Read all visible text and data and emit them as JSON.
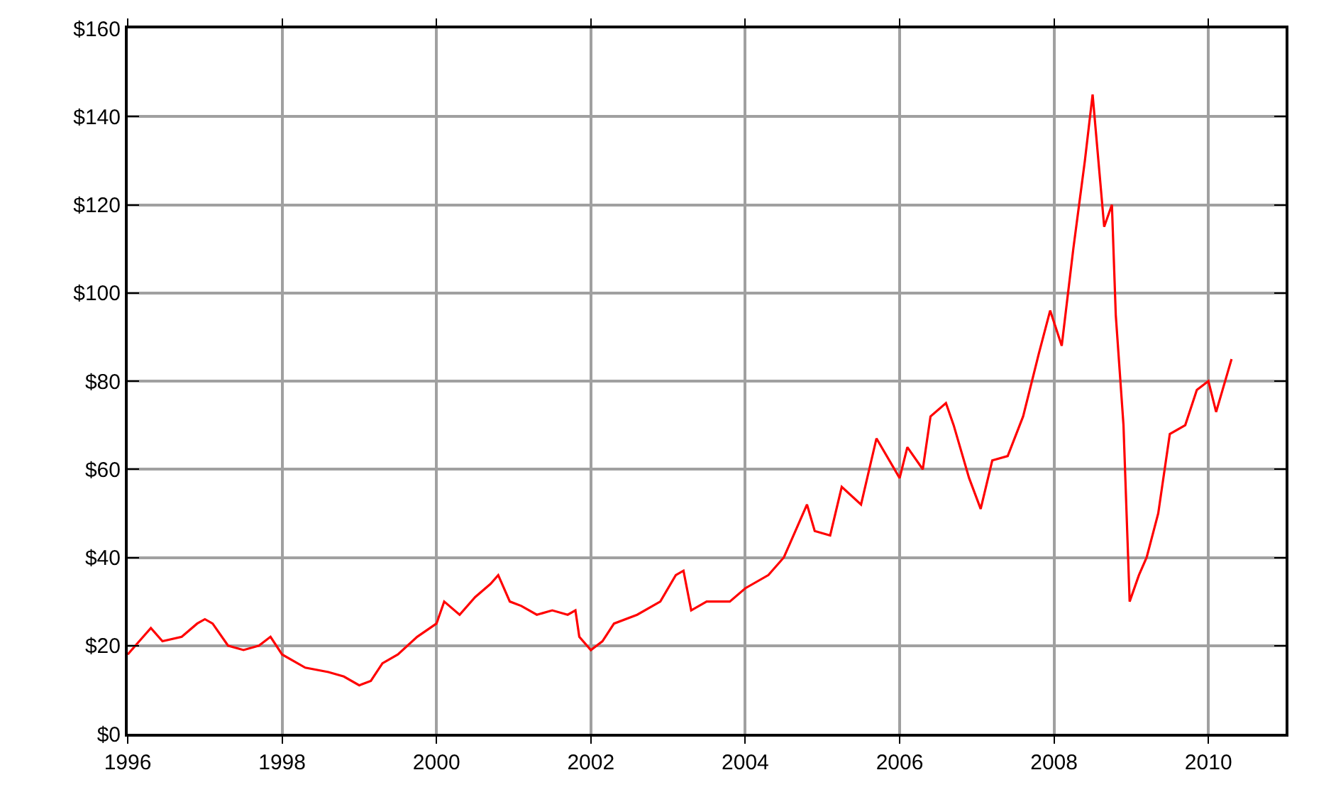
{
  "chart_data": {
    "type": "line",
    "x": [
      1996.0,
      1996.15,
      1996.3,
      1996.45,
      1996.7,
      1996.9,
      1997.0,
      1997.1,
      1997.3,
      1997.5,
      1997.7,
      1997.85,
      1998.0,
      1998.3,
      1998.6,
      1998.8,
      1999.0,
      1999.15,
      1999.3,
      1999.5,
      1999.75,
      2000.0,
      2000.1,
      2000.3,
      2000.5,
      2000.7,
      2000.8,
      2000.95,
      2001.1,
      2001.3,
      2001.5,
      2001.7,
      2001.8,
      2001.85,
      2002.0,
      2002.15,
      2002.3,
      2002.6,
      2002.9,
      2003.1,
      2003.2,
      2003.3,
      2003.5,
      2003.8,
      2004.0,
      2004.3,
      2004.5,
      2004.8,
      2004.9,
      2005.1,
      2005.25,
      2005.5,
      2005.7,
      2006.0,
      2006.1,
      2006.3,
      2006.4,
      2006.6,
      2006.7,
      2006.9,
      2007.05,
      2007.2,
      2007.4,
      2007.6,
      2007.8,
      2007.95,
      2008.1,
      2008.25,
      2008.4,
      2008.5,
      2008.6,
      2008.65,
      2008.75,
      2008.8,
      2008.9,
      2008.98,
      2009.1,
      2009.2,
      2009.35,
      2009.5,
      2009.7,
      2009.85,
      2010.0,
      2010.1,
      2010.25,
      2010.3
    ],
    "series": [
      {
        "color": "#ff0000",
        "values": [
          18,
          21,
          24,
          21,
          22,
          25,
          26,
          25,
          20,
          19,
          20,
          22,
          18,
          15,
          14,
          13,
          11,
          12,
          16,
          18,
          22,
          25,
          30,
          27,
          31,
          34,
          36,
          30,
          29,
          27,
          28,
          27,
          28,
          22,
          19,
          21,
          25,
          27,
          30,
          36,
          37,
          28,
          30,
          30,
          33,
          36,
          40,
          52,
          46,
          45,
          56,
          52,
          67,
          58,
          65,
          60,
          72,
          75,
          70,
          58,
          51,
          62,
          63,
          72,
          86,
          96,
          88,
          110,
          130,
          145,
          125,
          115,
          120,
          95,
          70,
          30,
          36,
          40,
          50,
          68,
          70,
          78,
          80,
          73,
          82,
          85
        ]
      }
    ],
    "xlim": [
      1996,
      2011
    ],
    "xticks": [
      1996,
      1998,
      2000,
      2002,
      2004,
      2006,
      2008,
      2010
    ],
    "ylim": [
      0,
      160
    ],
    "yticks": [
      {
        "value": 0,
        "label": "$0"
      },
      {
        "value": 20,
        "label": "$20"
      },
      {
        "value": 40,
        "label": "$40"
      },
      {
        "value": 60,
        "label": "$60"
      },
      {
        "value": 80,
        "label": "$80"
      },
      {
        "value": 100,
        "label": "$100"
      },
      {
        "value": 120,
        "label": "$120"
      },
      {
        "value": 140,
        "label": "$140"
      },
      {
        "value": 160,
        "label": "$160"
      }
    ],
    "grid": true,
    "legend": false,
    "marker": "none",
    "line_style": "solid"
  }
}
